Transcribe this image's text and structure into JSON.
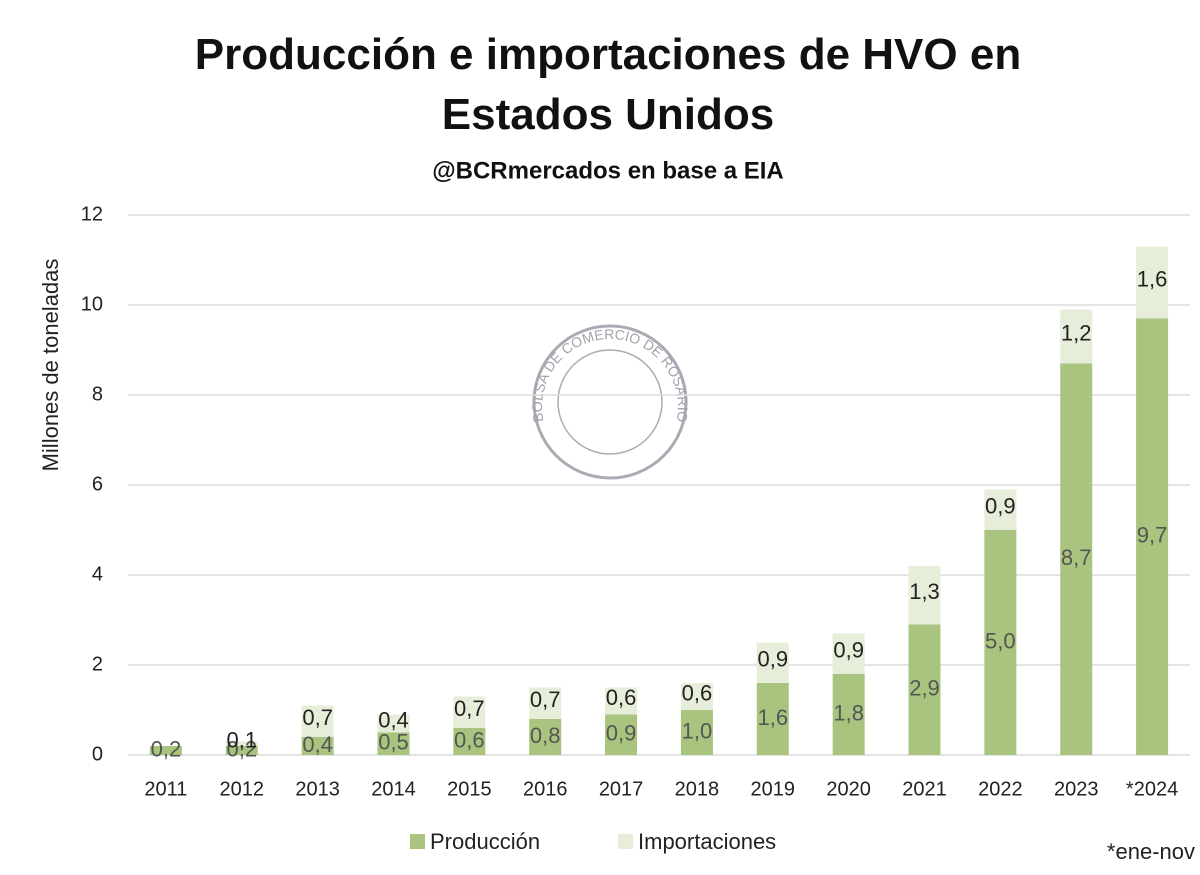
{
  "chart_data": {
    "type": "stacked_bar",
    "title": "Producción e importaciones de HVO en Estados Unidos",
    "subtitle": "@BCRmercados en base a EIA",
    "y_label": "Millones de toneladas",
    "footnote": "*ene-nov",
    "watermark": "BOLSA DE COMERCIO DE ROSARIO",
    "categories": [
      "2011",
      "2012",
      "2013",
      "2014",
      "2015",
      "2016",
      "2017",
      "2018",
      "2019",
      "2020",
      "2021",
      "2022",
      "2023",
      "*2024"
    ],
    "series": [
      {
        "name": "Producción",
        "color": "#a9c47f",
        "values": [
          0.2,
          0.2,
          0.4,
          0.5,
          0.6,
          0.8,
          0.9,
          1.0,
          1.6,
          1.8,
          2.9,
          5.0,
          8.7,
          9.7
        ],
        "value_labels": [
          "0,2",
          "0,2",
          "0,4",
          "0,5",
          "0,6",
          "0,8",
          "0,9",
          "1,0",
          "1,6",
          "1,8",
          "2,9",
          "5,0",
          "8,7",
          "9,7"
        ]
      },
      {
        "name": "Importaciones",
        "color": "#e6edd9",
        "values": [
          null,
          0.1,
          0.7,
          0.4,
          0.7,
          0.7,
          0.6,
          0.6,
          0.9,
          0.9,
          1.3,
          0.9,
          1.2,
          1.6
        ],
        "value_labels": [
          null,
          "0,1",
          "0,7",
          "0,4",
          "0,7",
          "0,7",
          "0,6",
          "0,6",
          "0,9",
          "0,9",
          "1,3",
          "0,9",
          "1,2",
          "1,6"
        ]
      }
    ],
    "ylim": [
      0,
      12
    ],
    "yticks": [
      0,
      2,
      4,
      6,
      8,
      10,
      12
    ],
    "grid": true,
    "legend": "bottom"
  }
}
